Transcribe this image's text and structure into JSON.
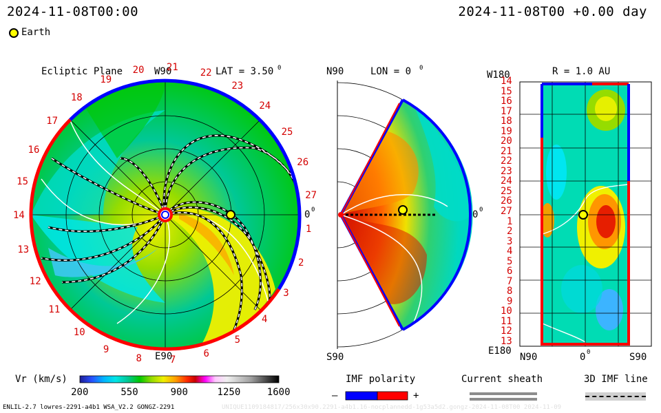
{
  "header": {
    "timestamp_left": "2024-11-08T00:00",
    "timestamp_right": "2024-11-08T00 +0.00 day",
    "legend_earth": "Earth"
  },
  "ecliptic_panel": {
    "title": "Ecliptic Plane",
    "lat_label": "LAT = 3.50",
    "lat_degree": "0",
    "top_label": "W90",
    "bottom_label": "E90",
    "right_label": "0",
    "right_degree": "0",
    "rotation_labels": [
      "1",
      "2",
      "3",
      "4",
      "5",
      "6",
      "7",
      "8",
      "9",
      "10",
      "11",
      "12",
      "13",
      "14",
      "15",
      "16",
      "17",
      "18",
      "19",
      "20",
      "21",
      "22",
      "23",
      "24",
      "25",
      "26",
      "27"
    ]
  },
  "meridional_panel": {
    "top_left": "N90",
    "lon_label": "LON = 0",
    "lon_degree": "0",
    "right_label": "0",
    "right_degree": "0",
    "bottom_left": "S90"
  },
  "synoptic_panel": {
    "top_left": "W180",
    "title": "R = 1.0 AU",
    "bottom_left": "E180",
    "x_left": "N90",
    "x_mid": "0",
    "x_mid_degree": "0",
    "x_right": "S90",
    "rotation_rows": [
      "14",
      "15",
      "16",
      "17",
      "18",
      "19",
      "20",
      "21",
      "22",
      "23",
      "24",
      "25",
      "26",
      "27",
      "1",
      "2",
      "3",
      "4",
      "5",
      "6",
      "7",
      "8",
      "9",
      "10",
      "11",
      "12",
      "13"
    ]
  },
  "colorbar": {
    "label": "Vr (km/s)",
    "ticks": [
      "200",
      "550",
      "900",
      "1250",
      "1600"
    ],
    "colors": [
      "#1e1e96",
      "#2850ff",
      "#00b4ff",
      "#00e6e6",
      "#00c896",
      "#00c800",
      "#96dc00",
      "#f0f000",
      "#ffa000",
      "#ff2800",
      "#c80000",
      "#ff00ff",
      "#ffc8ff",
      "#f0f0f0",
      "#a0a0a0",
      "#000000"
    ]
  },
  "imf_legend": {
    "title": "IMF polarity",
    "minus": "–",
    "plus": "+",
    "neg_color": "#0000ff",
    "pos_color": "#ff0000"
  },
  "sheath_legend": {
    "title": "Current sheath"
  },
  "imf_line_legend": {
    "title": "3D IMF line"
  },
  "footer": {
    "model_info": "ENLIL-2.7 lowres-2291-a4b1 WSA_V2.2 GONGZ-2291",
    "run_id": "UNIQUE1109184817/256x30x90.2291-a4b1.16-nocplannedd-1g53a5d2.gongz-2024-11-08T00  2024-11-09"
  }
}
